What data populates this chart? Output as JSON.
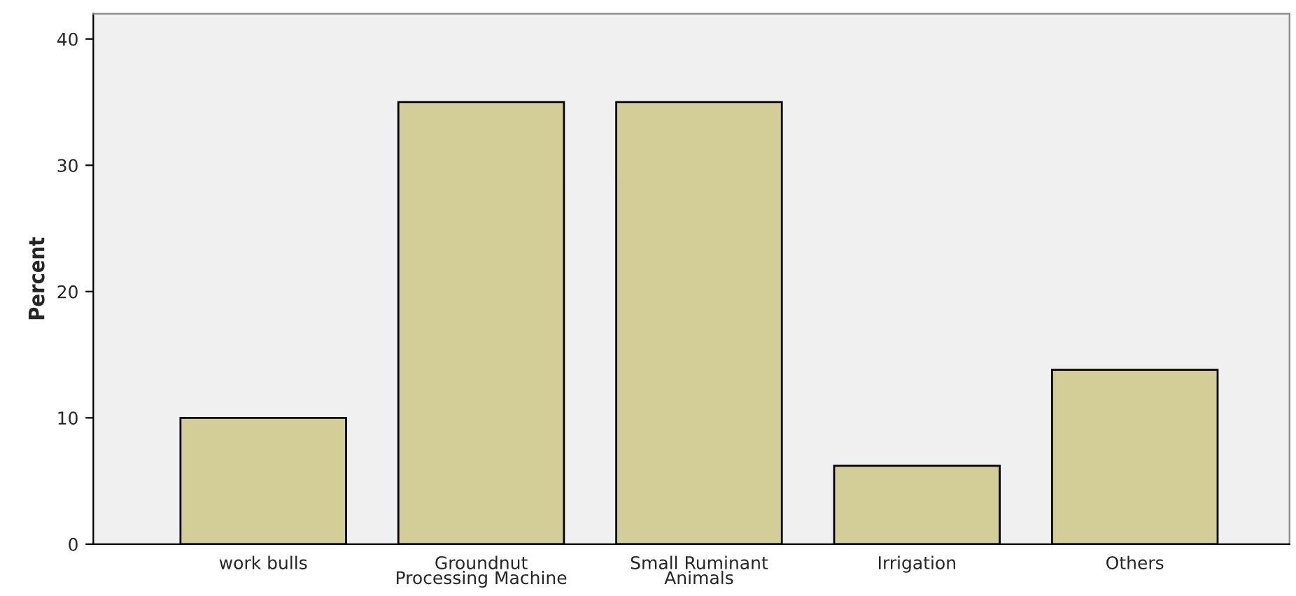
{
  "chart_data": {
    "type": "bar",
    "ylabel": "Percent",
    "categories": [
      "work bulls",
      "Groundnut\nProcessing Machine",
      "Small Ruminant\nAnimals",
      "Irrigation",
      "Others"
    ],
    "values": [
      10,
      35,
      35,
      6.2,
      13.8
    ],
    "color": "#d3ce97",
    "ylim": [
      0,
      42
    ],
    "yticks": [
      0,
      10,
      20,
      30,
      40
    ],
    "grid": false,
    "legend": false
  }
}
